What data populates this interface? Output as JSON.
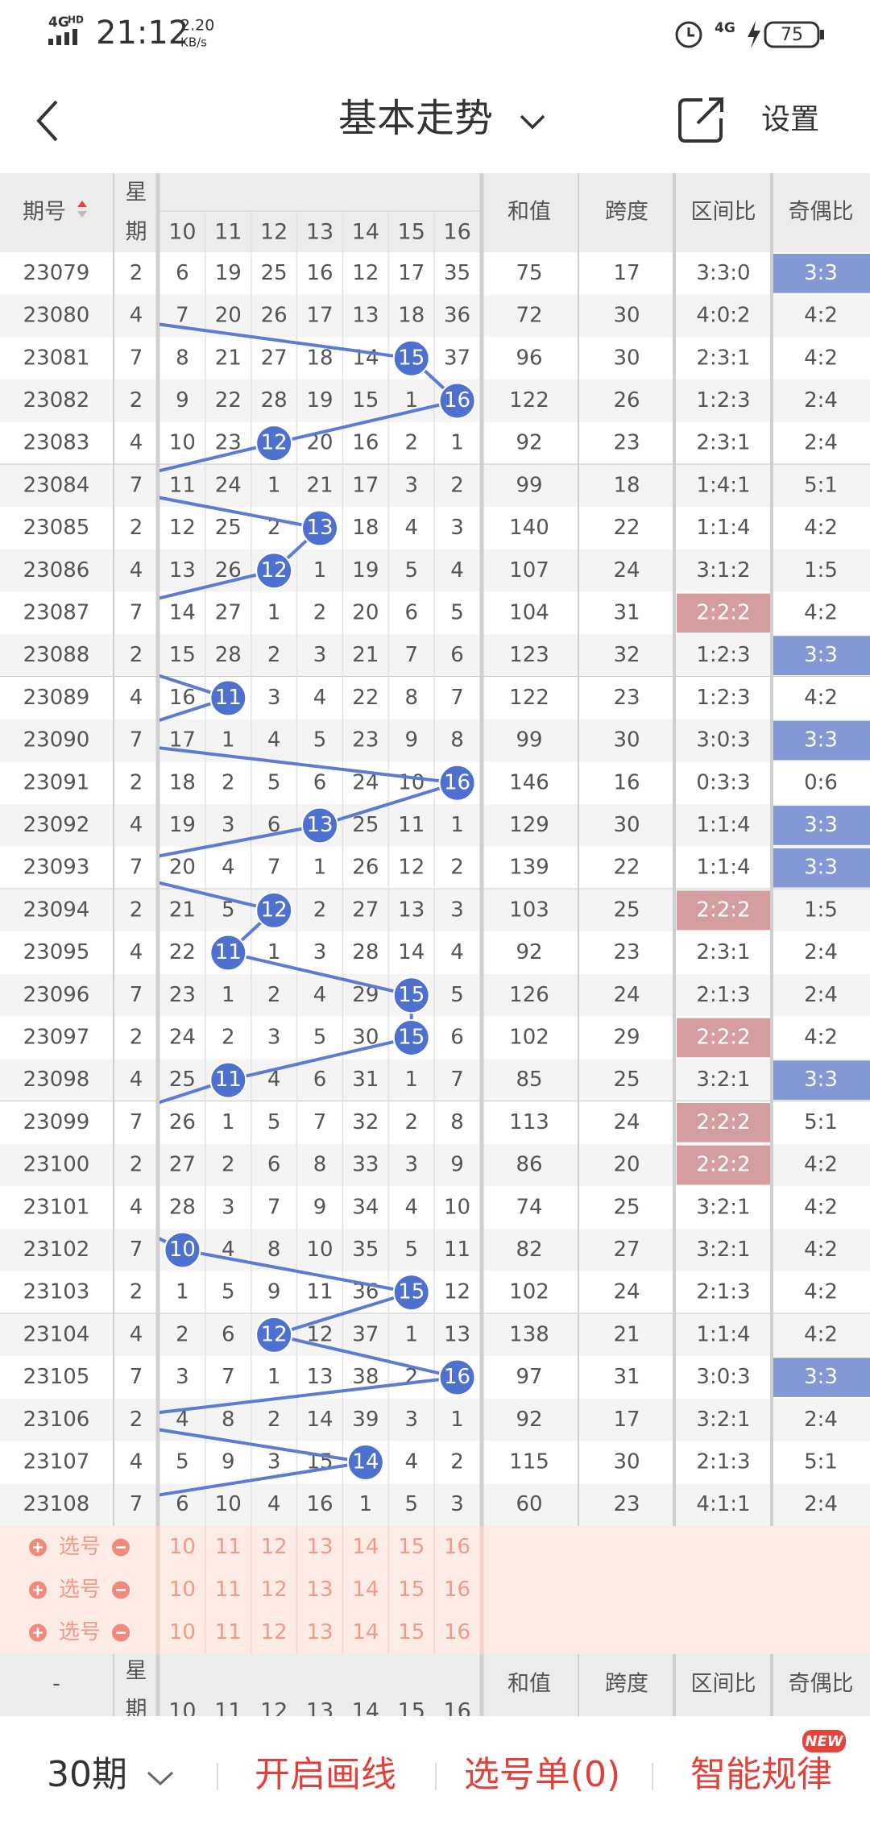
{
  "status_bar": {
    "network": "4G",
    "network_badge": "HD",
    "time": "21:12",
    "speed": "2.20",
    "speed_unit": "KB/s",
    "right_network": "4G",
    "battery": "75"
  },
  "header": {
    "title": "基本走势",
    "settings": "设置"
  },
  "trend": {
    "header": {
      "period": "期号",
      "weekday_top": "星",
      "weekday_bottom": "期",
      "numbers": [
        10,
        11,
        12,
        13,
        14,
        15,
        16
      ],
      "sum": "和值",
      "span": "跨度",
      "zone": "区间比",
      "parity": "奇偶比"
    },
    "rows": [
      {
        "period": "23079",
        "weekday": 2,
        "cells": [
          6,
          19,
          25,
          16,
          12,
          17,
          35
        ],
        "ball": null,
        "sum": 75,
        "span": 17,
        "zone": "3:3:0",
        "parity": "3:3",
        "highlight": "parity"
      },
      {
        "period": "23080",
        "weekday": 4,
        "cells": [
          7,
          20,
          26,
          17,
          13,
          18,
          36
        ],
        "ball": null,
        "sum": 72,
        "span": 30,
        "zone": "4:0:2",
        "parity": "4:2"
      },
      {
        "period": "23081",
        "weekday": 7,
        "cells": [
          8,
          21,
          27,
          18,
          14,
          null,
          37
        ],
        "ball": 15,
        "sum": 96,
        "span": 30,
        "zone": "2:3:1",
        "parity": "4:2"
      },
      {
        "period": "23082",
        "weekday": 2,
        "cells": [
          9,
          22,
          28,
          19,
          15,
          1,
          null
        ],
        "ball": 16,
        "sum": 122,
        "span": 26,
        "zone": "1:2:3",
        "parity": "2:4"
      },
      {
        "period": "23083",
        "weekday": 4,
        "cells": [
          10,
          23,
          null,
          20,
          16,
          2,
          1
        ],
        "ball": 12,
        "sum": 92,
        "span": 23,
        "zone": "2:3:1",
        "parity": "2:4"
      },
      {
        "period": "23084",
        "weekday": 7,
        "cells": [
          11,
          24,
          1,
          21,
          17,
          3,
          2
        ],
        "ball": null,
        "sum": 99,
        "span": 18,
        "zone": "1:4:1",
        "parity": "5:1"
      },
      {
        "period": "23085",
        "weekday": 2,
        "cells": [
          12,
          25,
          2,
          null,
          18,
          4,
          3
        ],
        "ball": 13,
        "sum": 140,
        "span": 22,
        "zone": "1:1:4",
        "parity": "4:2"
      },
      {
        "period": "23086",
        "weekday": 4,
        "cells": [
          13,
          26,
          null,
          1,
          19,
          5,
          4
        ],
        "ball": 12,
        "sum": 107,
        "span": 24,
        "zone": "3:1:2",
        "parity": "1:5"
      },
      {
        "period": "23087",
        "weekday": 7,
        "cells": [
          14,
          27,
          1,
          2,
          20,
          6,
          5
        ],
        "ball": null,
        "sum": 104,
        "span": 31,
        "zone": "2:2:2",
        "parity": "4:2",
        "highlight": "zone"
      },
      {
        "period": "23088",
        "weekday": 2,
        "cells": [
          15,
          28,
          2,
          3,
          21,
          7,
          6
        ],
        "ball": null,
        "sum": 123,
        "span": 32,
        "zone": "1:2:3",
        "parity": "3:3",
        "highlight": "parity"
      },
      {
        "period": "23089",
        "weekday": 4,
        "cells": [
          16,
          null,
          3,
          4,
          22,
          8,
          7
        ],
        "ball": 11,
        "sum": 122,
        "span": 23,
        "zone": "1:2:3",
        "parity": "4:2"
      },
      {
        "period": "23090",
        "weekday": 7,
        "cells": [
          17,
          1,
          4,
          5,
          23,
          9,
          8
        ],
        "ball": null,
        "sum": 99,
        "span": 30,
        "zone": "3:0:3",
        "parity": "3:3",
        "highlight": "parity"
      },
      {
        "period": "23091",
        "weekday": 2,
        "cells": [
          18,
          2,
          5,
          6,
          24,
          10,
          null
        ],
        "ball": 16,
        "sum": 146,
        "span": 16,
        "zone": "0:3:3",
        "parity": "0:6"
      },
      {
        "period": "23092",
        "weekday": 4,
        "cells": [
          19,
          3,
          6,
          null,
          25,
          11,
          1
        ],
        "ball": 13,
        "sum": 129,
        "span": 30,
        "zone": "1:1:4",
        "parity": "3:3",
        "highlight": "parity"
      },
      {
        "period": "23093",
        "weekday": 7,
        "cells": [
          20,
          4,
          7,
          1,
          26,
          12,
          2
        ],
        "ball": null,
        "sum": 139,
        "span": 22,
        "zone": "1:1:4",
        "parity": "3:3",
        "highlight": "parity"
      },
      {
        "period": "23094",
        "weekday": 2,
        "cells": [
          21,
          5,
          null,
          2,
          27,
          13,
          3
        ],
        "ball": 12,
        "sum": 103,
        "span": 25,
        "zone": "2:2:2",
        "parity": "1:5",
        "highlight": "zone"
      },
      {
        "period": "23095",
        "weekday": 4,
        "cells": [
          22,
          null,
          1,
          3,
          28,
          14,
          4
        ],
        "ball": 11,
        "sum": 92,
        "span": 23,
        "zone": "2:3:1",
        "parity": "2:4"
      },
      {
        "period": "23096",
        "weekday": 7,
        "cells": [
          23,
          1,
          2,
          4,
          29,
          null,
          5
        ],
        "ball": 15,
        "sum": 126,
        "span": 24,
        "zone": "2:1:3",
        "parity": "2:4"
      },
      {
        "period": "23097",
        "weekday": 2,
        "cells": [
          24,
          2,
          3,
          5,
          30,
          null,
          6
        ],
        "ball": 15,
        "sum": 102,
        "span": 29,
        "zone": "2:2:2",
        "parity": "4:2",
        "highlight": "zone"
      },
      {
        "period": "23098",
        "weekday": 4,
        "cells": [
          25,
          null,
          4,
          6,
          31,
          1,
          7
        ],
        "ball": 11,
        "sum": 85,
        "span": 25,
        "zone": "3:2:1",
        "parity": "3:3",
        "highlight": "parity"
      },
      {
        "period": "23099",
        "weekday": 7,
        "cells": [
          26,
          1,
          5,
          7,
          32,
          2,
          8
        ],
        "ball": null,
        "sum": 113,
        "span": 24,
        "zone": "2:2:2",
        "parity": "5:1",
        "highlight": "zone"
      },
      {
        "period": "23100",
        "weekday": 2,
        "cells": [
          27,
          2,
          6,
          8,
          33,
          3,
          9
        ],
        "ball": null,
        "sum": 86,
        "span": 20,
        "zone": "2:2:2",
        "parity": "4:2",
        "highlight": "zone"
      },
      {
        "period": "23101",
        "weekday": 4,
        "cells": [
          28,
          3,
          7,
          9,
          34,
          4,
          10
        ],
        "ball": null,
        "sum": 74,
        "span": 25,
        "zone": "3:2:1",
        "parity": "4:2"
      },
      {
        "period": "23102",
        "weekday": 7,
        "cells": [
          null,
          4,
          8,
          10,
          35,
          5,
          11
        ],
        "ball": 10,
        "sum": 82,
        "span": 27,
        "zone": "3:2:1",
        "parity": "4:2"
      },
      {
        "period": "23103",
        "weekday": 2,
        "cells": [
          1,
          5,
          9,
          11,
          36,
          null,
          12
        ],
        "ball": 15,
        "sum": 102,
        "span": 24,
        "zone": "2:1:3",
        "parity": "4:2"
      },
      {
        "period": "23104",
        "weekday": 4,
        "cells": [
          2,
          6,
          null,
          12,
          37,
          1,
          13
        ],
        "ball": 12,
        "sum": 138,
        "span": 21,
        "zone": "1:1:4",
        "parity": "4:2"
      },
      {
        "period": "23105",
        "weekday": 7,
        "cells": [
          3,
          7,
          1,
          13,
          38,
          2,
          null
        ],
        "ball": 16,
        "sum": 97,
        "span": 31,
        "zone": "3:0:3",
        "parity": "3:3",
        "highlight": "parity"
      },
      {
        "period": "23106",
        "weekday": 2,
        "cells": [
          4,
          8,
          2,
          14,
          39,
          3,
          1
        ],
        "ball": null,
        "sum": 92,
        "span": 17,
        "zone": "3:2:1",
        "parity": "2:4"
      },
      {
        "period": "23107",
        "weekday": 4,
        "cells": [
          5,
          9,
          3,
          15,
          null,
          4,
          2
        ],
        "ball": 14,
        "sum": 115,
        "span": 30,
        "zone": "2:1:3",
        "parity": "5:1"
      },
      {
        "period": "23108",
        "weekday": 7,
        "cells": [
          6,
          10,
          4,
          16,
          1,
          5,
          3
        ],
        "ball": null,
        "sum": 60,
        "span": 23,
        "zone": "4:1:1",
        "parity": "2:4"
      }
    ],
    "select_label": "选号",
    "select_count": 3,
    "footer_dash": "-"
  },
  "bottom_bar": {
    "period_select": "30期",
    "draw_lines": "开启画线",
    "pick_list": "选号单(0)",
    "smart_rules": "智能规律",
    "badge": "NEW"
  }
}
